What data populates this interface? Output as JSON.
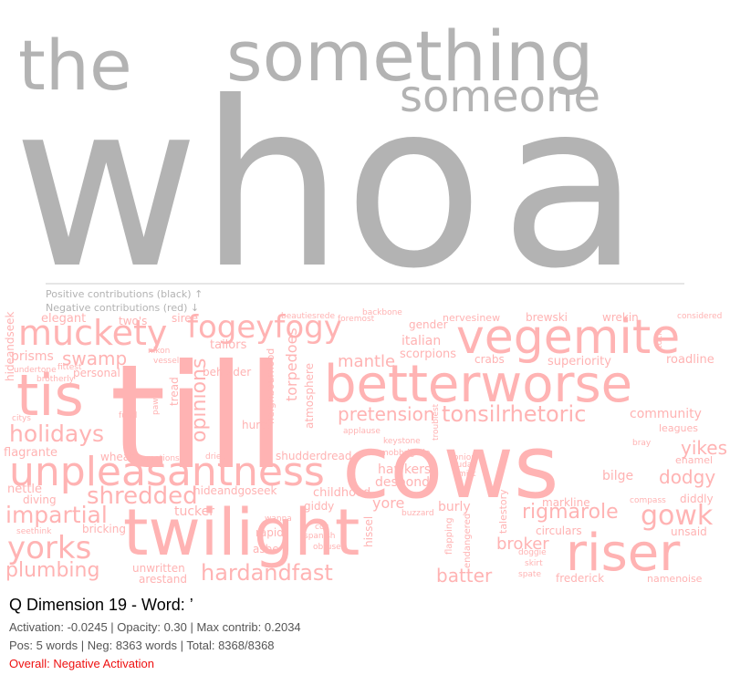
{
  "chart_data": {
    "type": "wordcloud",
    "positive_words": [
      {
        "text": "who",
        "weight": 1.0
      },
      {
        "text": "a",
        "weight": 0.92
      },
      {
        "text": "something",
        "weight": 0.4
      },
      {
        "text": "the",
        "weight": 0.36
      },
      {
        "text": "someone",
        "weight": 0.22
      }
    ],
    "negative_words": [
      {
        "text": "till",
        "weight": 1.0
      },
      {
        "text": "cows",
        "weight": 0.9
      },
      {
        "text": "twilight",
        "weight": 0.6
      },
      {
        "text": "betterworse",
        "weight": 0.45
      },
      {
        "text": "tis",
        "weight": 0.45
      },
      {
        "text": "unpleasantness",
        "weight": 0.42
      },
      {
        "text": "vegemite",
        "weight": 0.42
      },
      {
        "text": "fogeyfogy",
        "weight": 0.38
      },
      {
        "text": "riser",
        "weight": 0.4
      },
      {
        "text": "muckety",
        "weight": 0.32
      },
      {
        "text": "yorks",
        "weight": 0.32
      },
      {
        "text": "holidays",
        "weight": 0.24
      },
      {
        "text": "tonsilrhetoric",
        "weight": 0.24
      },
      {
        "text": "gowk",
        "weight": 0.26
      },
      {
        "text": "shredded",
        "weight": 0.22
      },
      {
        "text": "impartial",
        "weight": 0.22
      },
      {
        "text": "hardandfast",
        "weight": 0.22
      },
      {
        "text": "rigmarole",
        "weight": 0.2
      },
      {
        "text": "plumbing",
        "weight": 0.2
      },
      {
        "text": "swamp",
        "weight": 0.18
      },
      {
        "text": "opinions",
        "weight": 0.18
      },
      {
        "text": "pretension",
        "weight": 0.16
      },
      {
        "text": "batter",
        "weight": 0.16
      },
      {
        "text": "mantle",
        "weight": 0.15
      },
      {
        "text": "broker",
        "weight": 0.15
      },
      {
        "text": "yikes",
        "weight": 0.15
      },
      {
        "text": "dodgy",
        "weight": 0.15
      },
      {
        "text": "community",
        "weight": 0.13
      },
      {
        "text": "flagrante",
        "weight": 0.12
      },
      {
        "text": "torpedoes",
        "weight": 0.12
      },
      {
        "text": "atmosphere",
        "weight": 0.1
      },
      {
        "text": "hawkers",
        "weight": 0.1
      },
      {
        "text": "despond",
        "weight": 0.1
      },
      {
        "text": "yore",
        "weight": 0.1
      },
      {
        "text": "burly",
        "weight": 0.1
      },
      {
        "text": "childhood",
        "weight": 0.09
      },
      {
        "text": "shudderdread",
        "weight": 0.09
      },
      {
        "text": "superiority",
        "weight": 0.09
      },
      {
        "text": "italian",
        "weight": 0.09
      },
      {
        "text": "scorpions",
        "weight": 0.09
      },
      {
        "text": "crabs",
        "weight": 0.08
      },
      {
        "text": "nervesinew",
        "weight": 0.08
      },
      {
        "text": "brewski",
        "weight": 0.08
      },
      {
        "text": "wrekin",
        "weight": 0.08
      },
      {
        "text": "roadline",
        "weight": 0.08
      },
      {
        "text": "bilge",
        "weight": 0.08
      },
      {
        "text": "diddly",
        "weight": 0.08
      },
      {
        "text": "unsaid",
        "weight": 0.08
      },
      {
        "text": "frederick",
        "weight": 0.08
      },
      {
        "text": "tucker",
        "weight": 0.08
      },
      {
        "text": "arestand",
        "weight": 0.08
      },
      {
        "text": "unwritten",
        "weight": 0.08
      },
      {
        "text": "circulars",
        "weight": 0.08
      },
      {
        "text": "markline",
        "weight": 0.08
      },
      {
        "text": "bricking",
        "weight": 0.07
      },
      {
        "text": "elegant",
        "weight": 0.07
      },
      {
        "text": "tailors",
        "weight": 0.07
      },
      {
        "text": "beholder",
        "weight": 0.07
      },
      {
        "text": "prisms",
        "weight": 0.07
      },
      {
        "text": "diving",
        "weight": 0.07
      },
      {
        "text": "nettle",
        "weight": 0.07
      },
      {
        "text": "wheat",
        "weight": 0.07
      },
      {
        "text": "tread",
        "weight": 0.07
      },
      {
        "text": "hurts",
        "weight": 0.07
      },
      {
        "text": "neighbourhood",
        "weight": 0.07
      },
      {
        "text": "hideandgoseek",
        "weight": 0.06
      },
      {
        "text": "hideandseek",
        "weight": 0.06
      },
      {
        "text": "personal",
        "weight": 0.06
      },
      {
        "text": "rapid",
        "weight": 0.06
      },
      {
        "text": "asbe",
        "weight": 0.06
      },
      {
        "text": "giddy",
        "weight": 0.06
      },
      {
        "text": "hissel",
        "weight": 0.06
      },
      {
        "text": "gender",
        "weight": 0.06
      },
      {
        "text": "two's",
        "weight": 0.06
      },
      {
        "text": "siree",
        "weight": 0.06
      },
      {
        "text": "considered",
        "weight": 0.05
      },
      {
        "text": "enamel",
        "weight": 0.05
      },
      {
        "text": "leagues",
        "weight": 0.05
      },
      {
        "text": "namenoise",
        "weight": 0.05
      },
      {
        "text": "foremost",
        "weight": 0.05
      },
      {
        "text": "backbone",
        "weight": 0.05
      },
      {
        "text": "beautiesrede",
        "weight": 0.05
      },
      {
        "text": "applause",
        "weight": 0.05
      },
      {
        "text": "obtuse",
        "weight": 0.05
      },
      {
        "text": "spanish",
        "weight": 0.05
      },
      {
        "text": "wanna",
        "weight": 0.05
      },
      {
        "text": "cox",
        "weight": 0.05
      },
      {
        "text": "spate",
        "weight": 0.05
      },
      {
        "text": "skirt",
        "weight": 0.05
      },
      {
        "text": "doggie",
        "weight": 0.05
      },
      {
        "text": "brotherly",
        "weight": 0.05
      },
      {
        "text": "undertone",
        "weight": 0.05
      },
      {
        "text": "fittest",
        "weight": 0.05
      },
      {
        "text": "seethink",
        "weight": 0.05
      },
      {
        "text": "citys",
        "weight": 0.05
      },
      {
        "text": "dried",
        "weight": 0.05
      },
      {
        "text": "emotions",
        "weight": 0.05
      },
      {
        "text": "keystone",
        "weight": 0.05
      },
      {
        "text": "mobbrigade",
        "weight": 0.05
      },
      {
        "text": "judas",
        "weight": 0.05
      },
      {
        "text": "mist",
        "weight": 0.05
      },
      {
        "text": "fund",
        "weight": 0.05
      },
      {
        "text": "nikon",
        "weight": 0.05
      },
      {
        "text": "vessel",
        "weight": 0.05
      },
      {
        "text": "paw",
        "weight": 0.05
      },
      {
        "text": "bray",
        "weight": 0.05
      },
      {
        "text": "tuck",
        "weight": 0.05
      },
      {
        "text": "compass",
        "weight": 0.05
      },
      {
        "text": "talestory",
        "weight": 0.05
      },
      {
        "text": "flapping",
        "weight": 0.05
      },
      {
        "text": "onion",
        "weight": 0.05
      },
      {
        "text": "buzzard",
        "weight": 0.05
      },
      {
        "text": "troublest",
        "weight": 0.05
      },
      {
        "text": "endangered",
        "weight": 0.05
      }
    ],
    "legend": {
      "positive": "Positive contributions (black) ↑",
      "negative": "Negative contributions (red) ↓"
    }
  },
  "info": {
    "title": "Q Dimension 19 - Word: ’",
    "stats": "Activation: -0.0245 | Opacity: 0.30 | Max contrib: 0.2034",
    "counts": "Pos: 5 words | Neg: 8363 words | Total: 8368/8368",
    "overall": "Overall: Negative Activation"
  },
  "colors": {
    "positive": "#b3b3b3",
    "negative": "#ffb3b3",
    "overall": "#ee1111"
  }
}
